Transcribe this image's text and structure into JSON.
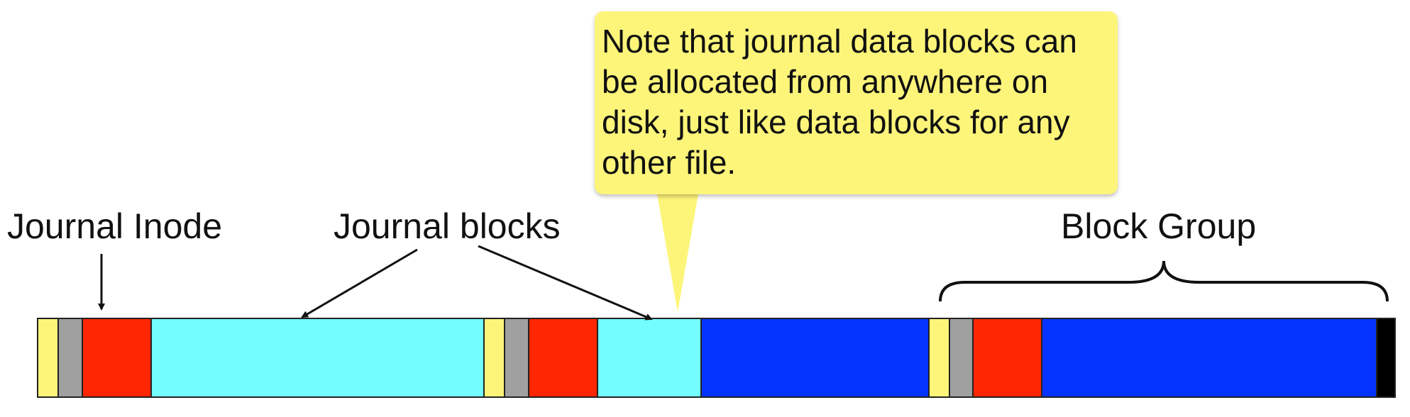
{
  "labels": {
    "journal_inode": "Journal Inode",
    "journal_blocks": "Journal blocks",
    "block_group": "Block Group"
  },
  "callout": {
    "text": "Note that journal data blocks can be allocated from anywhere on disk, just like data blocks for any other file."
  },
  "colors": {
    "superblock": "#fdf57a",
    "bitmap": "#a0a0a0",
    "inode_table": "#ff2600",
    "journal_block": "#73fdff",
    "data_block": "#0433ff",
    "end_marker": "#000000",
    "callout_fill": "#fdf57a"
  }
}
